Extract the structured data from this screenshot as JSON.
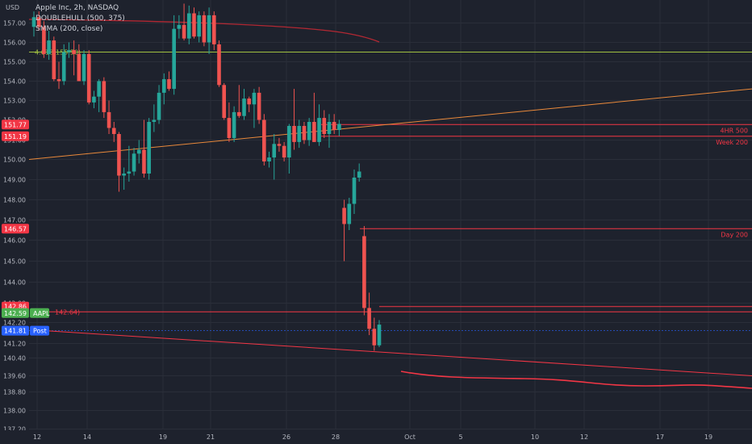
{
  "header": {
    "currency": "USD",
    "symbol_line": "Apple Inc, 2h, NASDAQ",
    "indicators": [
      "DOUBLEHULL (500, 375)",
      "SMMA (200, close)"
    ]
  },
  "chart_data": {
    "type": "candlestick",
    "symbol": "AAPL",
    "timeframe": "2h",
    "exchange": "NASDAQ",
    "y_axis_ticks": [
      157.0,
      156.0,
      155.0,
      154.0,
      153.0,
      152.0,
      151.0,
      150.0,
      149.0,
      148.0,
      147.0,
      146.0,
      145.0,
      144.0,
      143.0,
      142.2,
      141.2,
      140.4,
      139.6,
      138.8,
      138.0,
      137.2
    ],
    "x_axis_labels": [
      "12",
      "14",
      "19",
      "21",
      "26",
      "28",
      "Oct",
      "5",
      "10",
      "12",
      "17",
      "19"
    ],
    "price_badges": [
      {
        "text": "151.77",
        "value": 151.77,
        "color": "#f23645"
      },
      {
        "text": "151.19",
        "value": 151.19,
        "color": "#f23645"
      },
      {
        "text": "146.57",
        "value": 146.57,
        "color": "#f23645"
      },
      {
        "text": "142.86",
        "value": 142.86,
        "color": "#f23645"
      },
      {
        "text": "142.59",
        "value": 142.59,
        "color": "#4caf50",
        "tag": "AAPL"
      },
      {
        "text": "141.81",
        "value": 141.81,
        "color": "#2962ff",
        "tag": "Post"
      }
    ],
    "horizontal_levels": [
      {
        "value": 155.5,
        "label": "4.618(155.50)",
        "color": "#a0c040"
      },
      {
        "value": 151.77,
        "label": "4HR 500",
        "color": "#f23645"
      },
      {
        "value": 151.19,
        "label": "Week 200",
        "color": "#f23645"
      },
      {
        "value": 146.57,
        "label": "Day 200",
        "color": "#f23645"
      },
      {
        "value": 142.86,
        "label": "",
        "color": "#f23645"
      },
      {
        "value": 142.64,
        "label": "142.64)",
        "color": "#f23645"
      }
    ],
    "candles": [
      {
        "o": 156.8,
        "h": 157.6,
        "l": 156.3,
        "c": 157.3
      },
      {
        "o": 157.3,
        "h": 157.6,
        "l": 156.6,
        "c": 156.8
      },
      {
        "o": 156.8,
        "h": 157.1,
        "l": 155.2,
        "c": 155.4
      },
      {
        "o": 155.4,
        "h": 156.6,
        "l": 155.1,
        "c": 156.1
      },
      {
        "o": 156.1,
        "h": 156.3,
        "l": 154.0,
        "c": 154.1
      },
      {
        "o": 154.1,
        "h": 155.0,
        "l": 153.6,
        "c": 154.0
      },
      {
        "o": 154.0,
        "h": 155.9,
        "l": 153.8,
        "c": 155.5
      },
      {
        "o": 155.5,
        "h": 156.0,
        "l": 155.2,
        "c": 155.6
      },
      {
        "o": 155.6,
        "h": 156.1,
        "l": 154.3,
        "c": 155.4
      },
      {
        "o": 155.4,
        "h": 155.9,
        "l": 154.0,
        "c": 154.0
      },
      {
        "o": 154.0,
        "h": 155.6,
        "l": 153.8,
        "c": 155.4
      },
      {
        "o": 155.4,
        "h": 155.6,
        "l": 152.8,
        "c": 152.9
      },
      {
        "o": 152.9,
        "h": 153.5,
        "l": 152.6,
        "c": 153.2
      },
      {
        "o": 153.2,
        "h": 154.1,
        "l": 152.4,
        "c": 154.0
      },
      {
        "o": 154.0,
        "h": 154.2,
        "l": 152.1,
        "c": 152.4
      },
      {
        "o": 152.4,
        "h": 153.0,
        "l": 151.3,
        "c": 151.6
      },
      {
        "o": 151.6,
        "h": 151.9,
        "l": 150.9,
        "c": 151.3
      },
      {
        "o": 151.3,
        "h": 151.4,
        "l": 148.4,
        "c": 149.2
      },
      {
        "o": 149.2,
        "h": 149.6,
        "l": 148.5,
        "c": 149.3
      },
      {
        "o": 149.3,
        "h": 150.7,
        "l": 148.9,
        "c": 149.4
      },
      {
        "o": 149.4,
        "h": 150.6,
        "l": 149.2,
        "c": 150.3
      },
      {
        "o": 150.3,
        "h": 151.0,
        "l": 149.8,
        "c": 150.5
      },
      {
        "o": 150.5,
        "h": 152.0,
        "l": 149.1,
        "c": 149.3
      },
      {
        "o": 149.3,
        "h": 152.1,
        "l": 149.0,
        "c": 151.9
      },
      {
        "o": 151.9,
        "h": 152.8,
        "l": 151.4,
        "c": 152.0
      },
      {
        "o": 152.0,
        "h": 153.8,
        "l": 151.8,
        "c": 153.4
      },
      {
        "o": 153.4,
        "h": 154.4,
        "l": 152.8,
        "c": 154.1
      },
      {
        "o": 154.1,
        "h": 154.5,
        "l": 153.5,
        "c": 153.6
      },
      {
        "o": 153.6,
        "h": 157.4,
        "l": 153.3,
        "c": 156.7
      },
      {
        "o": 156.7,
        "h": 157.4,
        "l": 156.2,
        "c": 156.9
      },
      {
        "o": 156.9,
        "h": 158.0,
        "l": 156.1,
        "c": 156.2
      },
      {
        "o": 156.2,
        "h": 157.9,
        "l": 155.9,
        "c": 157.5
      },
      {
        "o": 157.5,
        "h": 157.8,
        "l": 156.2,
        "c": 156.3
      },
      {
        "o": 156.3,
        "h": 157.6,
        "l": 156.0,
        "c": 157.4
      },
      {
        "o": 157.4,
        "h": 157.6,
        "l": 155.8,
        "c": 156.0
      },
      {
        "o": 156.0,
        "h": 157.8,
        "l": 155.4,
        "c": 157.4
      },
      {
        "o": 157.4,
        "h": 157.6,
        "l": 155.6,
        "c": 155.9
      },
      {
        "o": 155.9,
        "h": 156.1,
        "l": 153.7,
        "c": 153.8
      },
      {
        "o": 153.8,
        "h": 153.9,
        "l": 152.0,
        "c": 152.1
      },
      {
        "o": 152.1,
        "h": 152.9,
        "l": 150.9,
        "c": 151.1
      },
      {
        "o": 151.1,
        "h": 152.7,
        "l": 150.9,
        "c": 152.4
      },
      {
        "o": 152.4,
        "h": 153.8,
        "l": 152.1,
        "c": 152.2
      },
      {
        "o": 152.2,
        "h": 153.6,
        "l": 152.0,
        "c": 153.1
      },
      {
        "o": 153.1,
        "h": 153.2,
        "l": 152.4,
        "c": 152.8
      },
      {
        "o": 152.8,
        "h": 153.6,
        "l": 151.6,
        "c": 153.4
      },
      {
        "o": 153.4,
        "h": 153.7,
        "l": 151.8,
        "c": 152.0
      },
      {
        "o": 152.0,
        "h": 152.3,
        "l": 149.7,
        "c": 149.9
      },
      {
        "o": 149.9,
        "h": 150.4,
        "l": 149.6,
        "c": 150.1
      },
      {
        "o": 150.1,
        "h": 151.3,
        "l": 149.0,
        "c": 150.8
      },
      {
        "o": 150.8,
        "h": 151.1,
        "l": 150.4,
        "c": 150.7
      },
      {
        "o": 150.7,
        "h": 150.9,
        "l": 149.9,
        "c": 150.1
      },
      {
        "o": 150.1,
        "h": 151.8,
        "l": 149.3,
        "c": 151.7
      },
      {
        "o": 151.7,
        "h": 153.6,
        "l": 150.5,
        "c": 150.9
      },
      {
        "o": 150.9,
        "h": 152.0,
        "l": 150.6,
        "c": 151.7
      },
      {
        "o": 151.7,
        "h": 151.9,
        "l": 150.8,
        "c": 151.0
      },
      {
        "o": 151.0,
        "h": 152.1,
        "l": 150.7,
        "c": 151.9
      },
      {
        "o": 151.9,
        "h": 153.4,
        "l": 150.9,
        "c": 150.9
      },
      {
        "o": 150.9,
        "h": 152.8,
        "l": 150.7,
        "c": 152.1
      },
      {
        "o": 152.1,
        "h": 152.5,
        "l": 151.1,
        "c": 151.3
      },
      {
        "o": 151.3,
        "h": 152.3,
        "l": 150.6,
        "c": 151.9
      },
      {
        "o": 151.9,
        "h": 152.3,
        "l": 151.3,
        "c": 151.5
      },
      {
        "o": 151.5,
        "h": 152.0,
        "l": 151.2,
        "c": 151.8
      },
      {
        "o": 147.6,
        "h": 148.0,
        "l": 145.0,
        "c": 146.8
      },
      {
        "o": 146.8,
        "h": 148.1,
        "l": 146.5,
        "c": 147.8
      },
      {
        "o": 147.8,
        "h": 149.5,
        "l": 147.3,
        "c": 149.1
      },
      {
        "o": 149.1,
        "h": 149.8,
        "l": 148.9,
        "c": 149.4
      },
      {
        "o": 146.2,
        "h": 146.7,
        "l": 142.5,
        "c": 142.8
      },
      {
        "o": 142.8,
        "h": 143.5,
        "l": 141.6,
        "c": 141.9
      },
      {
        "o": 141.9,
        "h": 142.4,
        "l": 140.8,
        "c": 141.1
      },
      {
        "o": 141.1,
        "h": 142.3,
        "l": 141.0,
        "c": 142.1
      }
    ]
  },
  "colors": {
    "up": "#26a69a",
    "down": "#ef5350",
    "background": "#1e222d",
    "grid": "#2a2e39",
    "fib": "#a0c040",
    "level": "#f23645",
    "trend_up": "#e9893b",
    "smma": "#b22833"
  }
}
